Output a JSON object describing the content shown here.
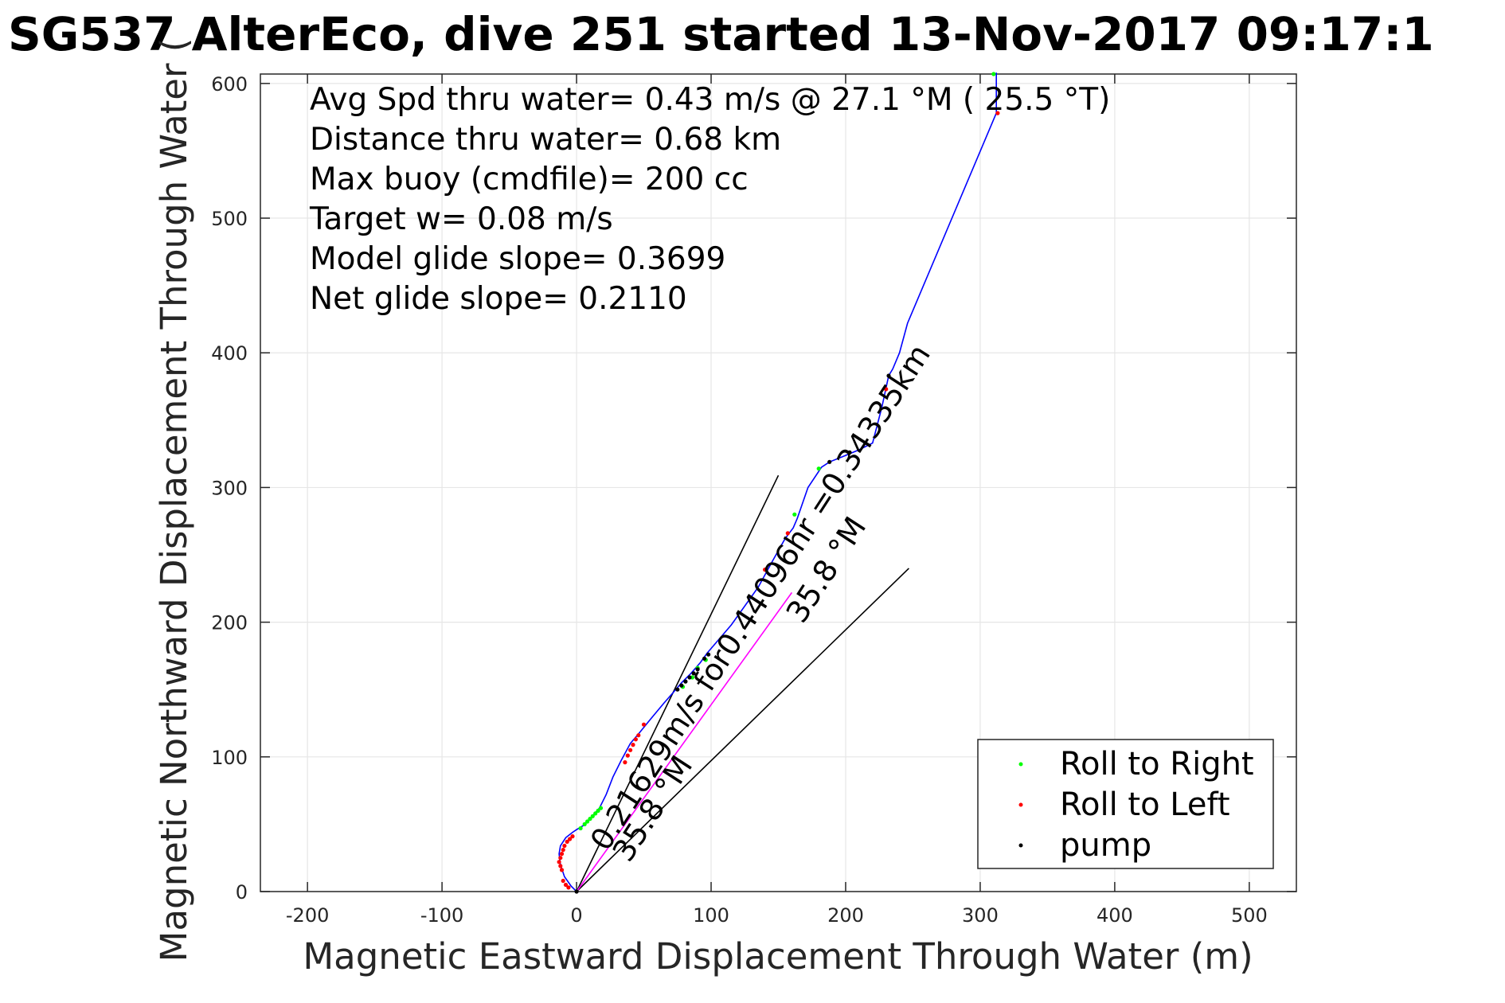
{
  "title": "SG537 AlterEco, dive 251 started 13-Nov-2017 09:17:1",
  "xlabel": "Magnetic Eastward Displacement Through Water (m)",
  "ylabel": "Magnetic Northward Displacement Through Water (",
  "stats": [
    "Avg Spd thru water=  0.43 m/s @  27.1 °M ( 25.5 °T)",
    "Distance thru water=  0.68 km",
    "Max buoy (cmdfile)= 200 cc",
    "Target w= 0.08 m/s",
    "Model glide slope= 0.3699",
    "Net glide slope= 0.2110"
  ],
  "annotations": {
    "diagonal": "0.21629m/s for0.44096hr =0.34335km",
    "heading_upper": "35.8 °M",
    "heading_lower": "35.8 °M"
  },
  "legend": [
    {
      "label": "Roll to Right",
      "color": "#00ff00"
    },
    {
      "label": "Roll to Left",
      "color": "#ff0000"
    },
    {
      "label": "pump",
      "color": "#000000"
    }
  ],
  "colors": {
    "track": "#0000ff",
    "fit_line": "#ff00ff",
    "cone_line": "#000000",
    "grid": "#e6e6e6"
  },
  "chart_data": {
    "type": "line",
    "xlim": [
      -235,
      535
    ],
    "ylim": [
      0,
      607
    ],
    "xticks": [
      -200,
      -100,
      0,
      100,
      200,
      300,
      400,
      500
    ],
    "yticks": [
      0,
      100,
      200,
      300,
      400,
      500,
      600
    ],
    "grid": true,
    "legend_position": "bottom-right",
    "track": {
      "x": [
        0,
        -4,
        -9,
        -12,
        -13,
        -12,
        -8,
        -3,
        0,
        5,
        10,
        17,
        22,
        27,
        33,
        40,
        46,
        55,
        65,
        72,
        78,
        85,
        92,
        97,
        115,
        135,
        146,
        155,
        161,
        164,
        172,
        182,
        188,
        198,
        210,
        220,
        227,
        232,
        235,
        240,
        246,
        312,
        312
      ],
      "y": [
        0,
        4,
        11,
        20,
        28,
        34,
        40,
        44,
        46,
        49,
        54,
        62,
        72,
        85,
        97,
        110,
        117,
        128,
        140,
        148,
        155,
        162,
        170,
        177,
        198,
        226,
        246,
        262,
        270,
        277,
        300,
        315,
        319,
        323,
        328,
        333,
        360,
        383,
        388,
        400,
        422,
        578,
        608
      ]
    },
    "fit_line": {
      "x": [
        0,
        160
      ],
      "y": [
        0,
        222
      ]
    },
    "cone_lines": [
      {
        "x": [
          0,
          150
        ],
        "y": [
          0,
          309
        ]
      },
      {
        "x": [
          0,
          247
        ],
        "y": [
          0,
          240
        ]
      }
    ],
    "markers": {
      "roll_right": {
        "x": [
          3,
          6,
          8,
          10,
          12,
          14,
          16,
          18,
          79,
          86,
          90,
          96,
          162,
          180,
          310
        ],
        "y": [
          47,
          50,
          52,
          54,
          56,
          58,
          60,
          62,
          152,
          159,
          166,
          172,
          280,
          314,
          607
        ]
      },
      "roll_left": {
        "x": [
          -11,
          -12,
          -13,
          -12,
          -11,
          -10,
          -9,
          -7,
          -5,
          -3,
          -10,
          -8,
          -6,
          36,
          38,
          40,
          42,
          44,
          46,
          50,
          140,
          157,
          230,
          313
        ],
        "y": [
          16,
          19,
          22,
          25,
          28,
          31,
          34,
          37,
          39,
          41,
          8,
          5,
          3,
          96,
          101,
          105,
          109,
          113,
          116,
          124,
          239,
          266,
          373,
          578
        ]
      },
      "pump": {
        "x": [
          0,
          75,
          78,
          81,
          84,
          87,
          90,
          95,
          98,
          188,
          203,
          232
        ],
        "y": [
          0,
          150,
          153,
          156,
          159,
          162,
          165,
          173,
          176,
          319,
          326,
          383
        ]
      }
    }
  }
}
